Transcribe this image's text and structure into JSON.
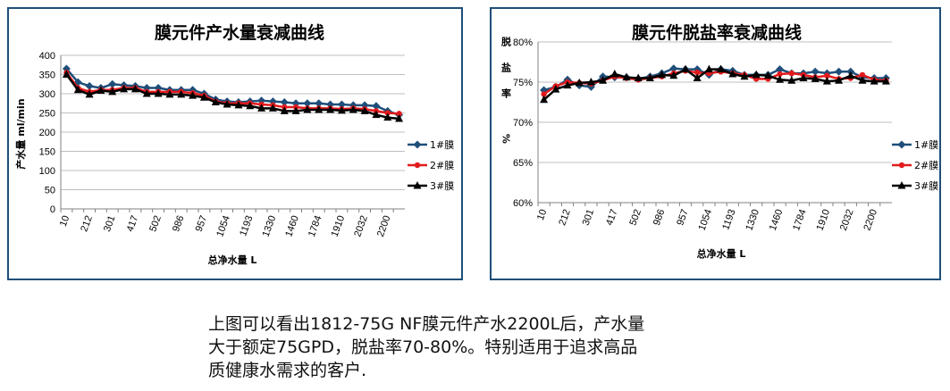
{
  "colors": {
    "series1": "#1f4e79",
    "series2": "#e31a1c",
    "series3": "#000000",
    "grid": "#bfbfbf",
    "border": "#1f4e79"
  },
  "chart_data": [
    {
      "type": "line",
      "title": "膜元件产水量衰减曲线",
      "xlabel": "总净水量 L",
      "ylabel": "产水量 ml/min",
      "ylim": [
        0,
        400
      ],
      "yticks": [
        "0",
        "50",
        "100",
        "150",
        "200",
        "250",
        "300",
        "350",
        "400"
      ],
      "categories": [
        "10",
        "",
        "212",
        "",
        "301",
        "",
        "417",
        "",
        "502",
        "",
        "986",
        "",
        "957",
        "",
        "1054",
        "",
        "1193",
        "",
        "1330",
        "",
        "1460",
        "",
        "1784",
        "",
        "1910",
        "",
        "2032",
        "",
        "2200",
        ""
      ],
      "grid": true,
      "legend_position": "right",
      "series": [
        {
          "name": "1#膜",
          "values": [
            365,
            330,
            320,
            315,
            325,
            322,
            320,
            315,
            315,
            310,
            310,
            310,
            300,
            285,
            280,
            278,
            280,
            282,
            280,
            278,
            275,
            275,
            275,
            272,
            272,
            270,
            270,
            268,
            255,
            245
          ]
        },
        {
          "name": "2#膜",
          "values": [
            355,
            315,
            305,
            310,
            310,
            315,
            315,
            305,
            305,
            305,
            305,
            302,
            295,
            280,
            275,
            275,
            275,
            272,
            270,
            265,
            265,
            262,
            262,
            262,
            260,
            262,
            260,
            255,
            250,
            248
          ]
        },
        {
          "name": "3#膜",
          "values": [
            350,
            310,
            298,
            308,
            305,
            312,
            312,
            300,
            300,
            298,
            298,
            295,
            290,
            278,
            272,
            270,
            268,
            262,
            262,
            255,
            255,
            258,
            258,
            258,
            256,
            258,
            255,
            245,
            238,
            235
          ]
        }
      ]
    },
    {
      "type": "line",
      "title": "膜元件脱盐率衰减曲线",
      "xlabel": "总净水量 L",
      "ylabel": "脱盐率 %",
      "ylim": [
        60,
        80
      ],
      "yticks": [
        "60%",
        "65%",
        "70%",
        "75%",
        "80%"
      ],
      "categories": [
        "10",
        "",
        "212",
        "",
        "301",
        "",
        "417",
        "",
        "502",
        "",
        "986",
        "",
        "957",
        "",
        "1054",
        "",
        "1193",
        "",
        "1330",
        "",
        "1460",
        "",
        "1784",
        "",
        "1910",
        "",
        "2032",
        "",
        "2200",
        ""
      ],
      "grid": true,
      "legend_position": "right",
      "series": [
        {
          "name": "1#膜",
          "values": [
            74.0,
            74.4,
            75.3,
            74.6,
            74.4,
            75.7,
            75.6,
            75.6,
            75.4,
            75.7,
            76.1,
            76.7,
            76.6,
            76.6,
            75.9,
            76.6,
            76.4,
            75.9,
            75.9,
            75.9,
            76.6,
            76.1,
            76.1,
            76.3,
            76.1,
            76.3,
            76.3,
            75.6,
            75.5,
            75.5
          ]
        },
        {
          "name": "2#膜",
          "values": [
            73.5,
            74.5,
            75.0,
            74.9,
            74.8,
            75.2,
            75.7,
            75.5,
            75.3,
            75.5,
            75.7,
            76.1,
            76.4,
            76.2,
            76.1,
            76.3,
            76.1,
            75.9,
            75.4,
            75.4,
            76.0,
            76.1,
            75.9,
            75.6,
            75.8,
            75.4,
            75.5,
            75.9,
            75.3,
            75.2
          ]
        },
        {
          "name": "3#膜",
          "values": [
            72.8,
            74.1,
            74.6,
            74.9,
            75.0,
            75.2,
            76.0,
            75.6,
            75.5,
            75.5,
            75.9,
            75.8,
            76.6,
            75.5,
            76.6,
            76.6,
            76.0,
            75.7,
            75.9,
            75.8,
            75.3,
            75.2,
            75.5,
            75.4,
            75.1,
            75.2,
            75.8,
            75.2,
            75.1,
            75.1
          ]
        }
      ]
    }
  ],
  "caption": {
    "line1": "上图可以看出1812-75G NF膜元件产水2200L后，产水量",
    "line2": "大于额定75GPD，脱盐率70-80%。特别适用于追求高品",
    "line3": "质健康水需求的客户."
  }
}
